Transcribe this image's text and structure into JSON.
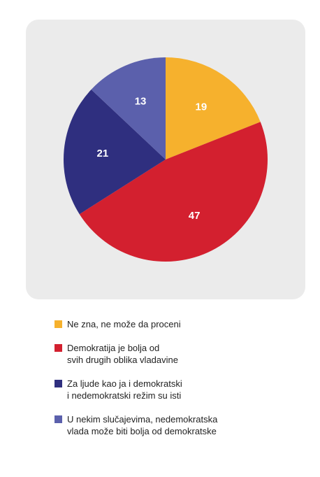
{
  "chart_data": {
    "type": "pie",
    "slices": [
      {
        "label": "Ne zna, ne može da proceni",
        "value": 19,
        "color": "#f6b12d"
      },
      {
        "label": "Demokratija je bolja od\nsvih drugih oblika vladavine",
        "value": 47,
        "color": "#d3202f"
      },
      {
        "label": "Za ljude kao ja i demokratski\ni nedemokratski režim su isti",
        "value": 21,
        "color": "#2f2f7f"
      },
      {
        "label": "U nekim slučajevima, nedemokratska\nvlada može biti bolja od demokratske",
        "value": 13,
        "color": "#5b60ac"
      }
    ],
    "start_angle": "top",
    "direction": "clockwise",
    "legend_position": "bottom"
  }
}
